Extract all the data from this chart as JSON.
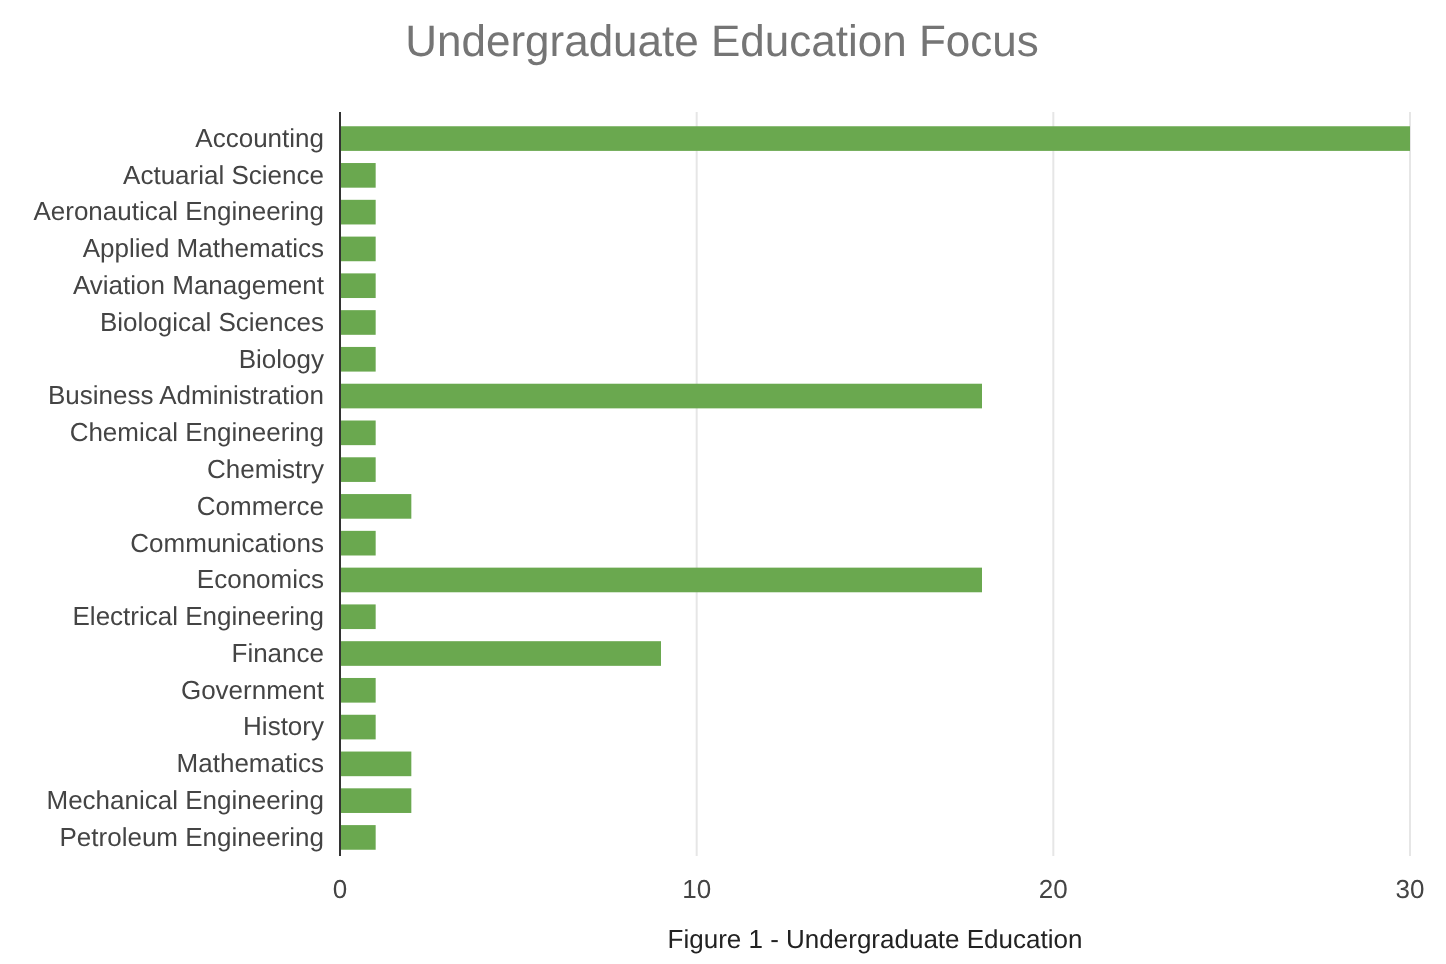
{
  "chart_data": {
    "type": "bar",
    "orientation": "horizontal",
    "title": "Undergraduate Education Focus",
    "xlabel": "Figure 1 - Undergraduate Education",
    "categories": [
      "Accounting",
      "Actuarial Science",
      "Aeronautical Engineering",
      "Applied Mathematics",
      "Aviation Management",
      "Biological Sciences",
      "Biology",
      "Business Administration",
      "Chemical Engineering",
      "Chemistry",
      "Commerce",
      "Communications",
      "Economics",
      "Electrical Engineering",
      "Finance",
      "Government",
      "History",
      "Mathematics",
      "Mechanical Engineering",
      "Petroleum Engineering"
    ],
    "values": [
      30,
      1,
      1,
      1,
      1,
      1,
      1,
      18,
      1,
      1,
      2,
      1,
      18,
      1,
      9,
      1,
      1,
      2,
      2,
      1
    ],
    "color": "#6aa84f",
    "xlim": [
      0,
      30
    ],
    "xticks": [
      0,
      10,
      20,
      30
    ],
    "grid": "x"
  }
}
